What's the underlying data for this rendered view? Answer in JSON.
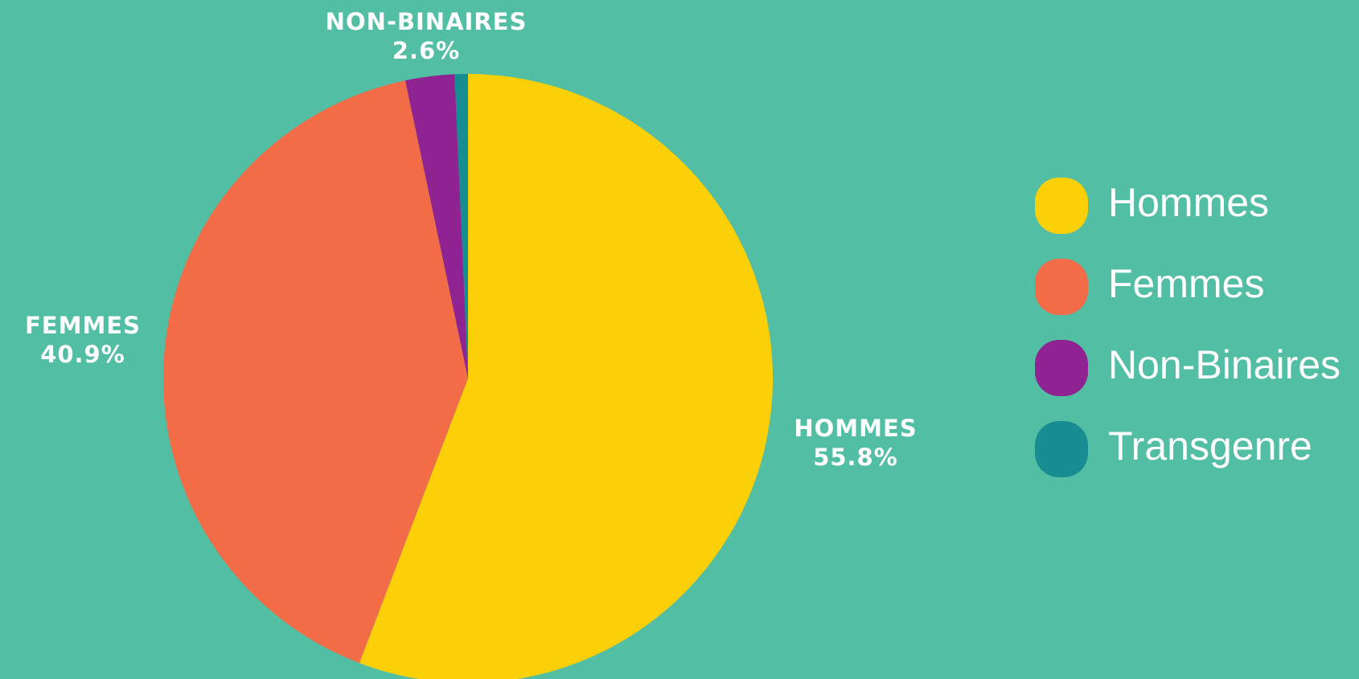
{
  "chart_data": {
    "type": "pie",
    "categories": [
      "Hommes",
      "Femmes",
      "Non-Binaires",
      "Transgenre"
    ],
    "labels": [
      "HOMMES",
      "FEMMES",
      "NON-BINAIRES",
      null
    ],
    "values": [
      55.8,
      40.9,
      2.6,
      0.7
    ],
    "value_labels": [
      "55.8%",
      "40.9%",
      "2.6%",
      null
    ],
    "colors": [
      "#fbd009",
      "#f26c48",
      "#8e2391",
      "#178d91"
    ],
    "legend": "right"
  }
}
